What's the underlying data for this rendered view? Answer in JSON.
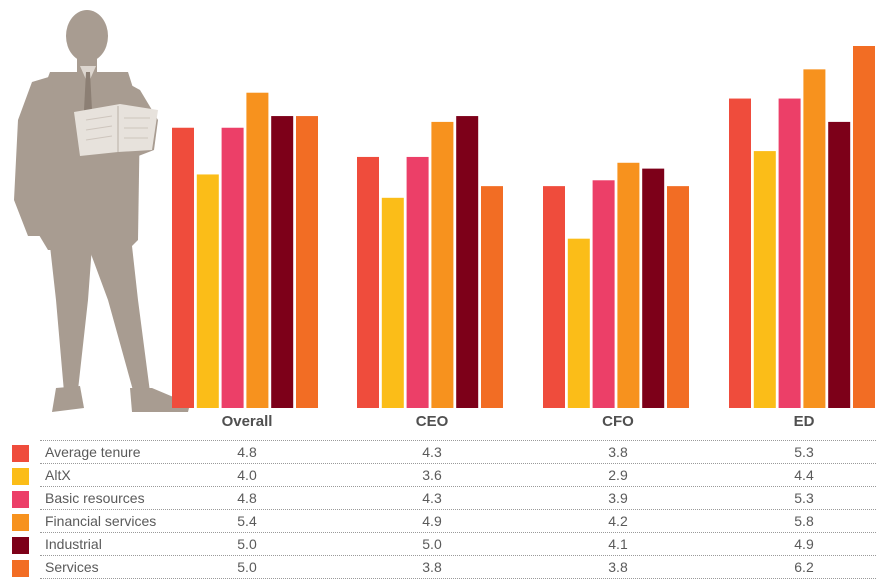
{
  "colors": {
    "Average tenure": "#ef4c3c",
    "AltX": "#fbbd18",
    "Basic resources": "#ec3f68",
    "Financial services": "#f7921e",
    "Industrial": "#7d0019",
    "Services": "#f26d24",
    "figure": "#a89c91"
  },
  "icons": {
    "person": "businessman-silhouette-icon"
  },
  "chart_data": {
    "type": "bar",
    "categories": [
      "Overall",
      "CEO",
      "CFO",
      "ED"
    ],
    "series": [
      {
        "name": "Average tenure",
        "values": [
          4.8,
          4.3,
          3.8,
          5.3
        ]
      },
      {
        "name": "AltX",
        "values": [
          4.0,
          3.6,
          2.9,
          4.4
        ]
      },
      {
        "name": "Basic resources",
        "values": [
          4.8,
          4.3,
          3.9,
          5.3
        ]
      },
      {
        "name": "Financial services",
        "values": [
          5.4,
          4.9,
          4.2,
          5.8
        ]
      },
      {
        "name": "Industrial",
        "values": [
          5.0,
          5.0,
          4.1,
          4.9
        ]
      },
      {
        "name": "Services",
        "values": [
          5.0,
          3.8,
          3.8,
          6.2
        ]
      }
    ],
    "table_values": [
      [
        "4.8",
        "4.3",
        "3.8",
        "5.3"
      ],
      [
        "4.0",
        "3.6",
        "2.9",
        "4.4"
      ],
      [
        "4.8",
        "4.3",
        "3.9",
        "5.3"
      ],
      [
        "5.4",
        "4.9",
        "4.2",
        "5.8"
      ],
      [
        "5.0",
        "5.0",
        "4.1",
        "4.9"
      ],
      [
        "5.0",
        "3.8",
        "3.8",
        "6.2"
      ]
    ],
    "legend_placement": "bottom-left, as table row labels",
    "grid": false,
    "ylim": [
      0,
      6.2
    ]
  }
}
